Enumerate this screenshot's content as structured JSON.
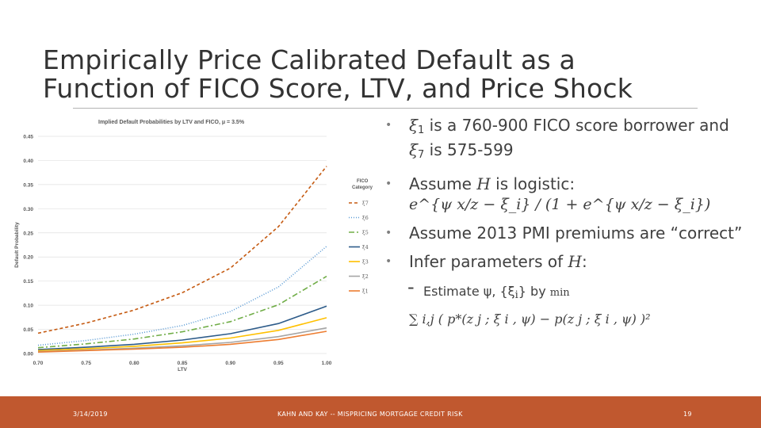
{
  "slide": {
    "title_line1": "Empirically Price Calibrated Default as a",
    "title_line2": "Function of FICO Score, LTV, and Price Shock",
    "bullets": {
      "b1_pre": "ξ",
      "b1_sub": "1",
      "b1_mid": " is a 760-900 FICO score borrower and ",
      "b1_xi": "ξ",
      "b1_sub2": "7",
      "b1_post": " is 575-599",
      "b2_text": "Assume ",
      "b2_var": "H",
      "b2_text2": " is logistic:",
      "b2_formula": "e^{ψ x/z − ξ_i} / (1 + e^{ψ x/z − ξ_i})",
      "b3_text": "Assume 2013 PMI premiums are “correct”",
      "b4_text": "Infer parameters of ",
      "b4_var": "H",
      "b4_colon": ":",
      "sub_dash": "-",
      "sub_text": "Estimate ψ, {ξ",
      "sub_text_i": "i",
      "sub_text2": "} by ",
      "sub_min": "min",
      "sub_formula": "∑ i,j ( p*(z j ; ξ i , ψ) − p(z j ; ξ i , ψ) )²"
    }
  },
  "footer": {
    "date": "3/14/2019",
    "center": "KAHN AND KAY -- MISPRICING MORTGAGE CREDIT RISK",
    "page": "19"
  },
  "chart_data": {
    "type": "line",
    "title": "Implied Default Probabilities by LTV and FICO, μ = 3.5%",
    "xlabel": "LTV",
    "ylabel": "Default Probability",
    "x": [
      0.7,
      0.75,
      0.8,
      0.85,
      0.9,
      0.95,
      1.0
    ],
    "xticks": [
      "0.70",
      "0.75",
      "0.80",
      "0.85",
      "0.90",
      "0.95",
      "1.00"
    ],
    "yticks": [
      "0.00",
      "0.05",
      "0.10",
      "0.15",
      "0.20",
      "0.25",
      "0.30",
      "0.35",
      "0.40",
      "0.45"
    ],
    "ylim": [
      0,
      0.45
    ],
    "grid": true,
    "legend_title": "FICO Category",
    "legend_position": "right",
    "series": [
      {
        "name": "ξ7",
        "color": "#c55a11",
        "dash": "4,3",
        "values": [
          0.042,
          0.063,
          0.09,
          0.126,
          0.177,
          0.263,
          0.388
        ]
      },
      {
        "name": "ξ6",
        "color": "#5b9bd5",
        "dash": "1,2",
        "values": [
          0.017,
          0.027,
          0.04,
          0.058,
          0.087,
          0.138,
          0.222
        ]
      },
      {
        "name": "ξ5",
        "color": "#70ad47",
        "dash": "7,3,2,3",
        "values": [
          0.012,
          0.02,
          0.03,
          0.045,
          0.066,
          0.101,
          0.16
        ]
      },
      {
        "name": "ξ4",
        "color": "#2e5c8a",
        "dash": "",
        "values": [
          0.008,
          0.013,
          0.019,
          0.028,
          0.041,
          0.062,
          0.098
        ]
      },
      {
        "name": "ξ3",
        "color": "#ffc000",
        "dash": "",
        "values": [
          0.006,
          0.01,
          0.015,
          0.022,
          0.032,
          0.048,
          0.074
        ]
      },
      {
        "name": "ξ2",
        "color": "#a5a5a5",
        "dash": "",
        "values": [
          0.004,
          0.007,
          0.011,
          0.016,
          0.023,
          0.035,
          0.053
        ]
      },
      {
        "name": "ξ1",
        "color": "#ed7d31",
        "dash": "",
        "values": [
          0.003,
          0.006,
          0.009,
          0.013,
          0.019,
          0.029,
          0.046
        ]
      }
    ]
  }
}
